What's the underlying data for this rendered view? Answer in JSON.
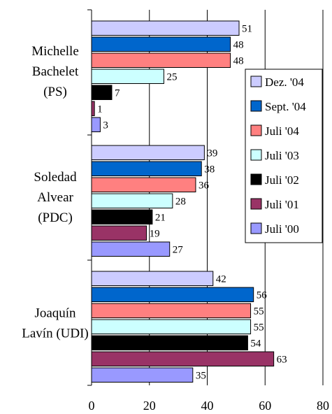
{
  "chart_data": {
    "type": "bar",
    "orientation": "horizontal",
    "categories": [
      [
        "Michelle",
        "Bachelet",
        "(PS)"
      ],
      [
        "Soledad",
        "Alvear",
        "(PDC)"
      ],
      [
        "Joaquín",
        "Lavín (UDI)"
      ]
    ],
    "series": [
      {
        "name": "Dez. '04",
        "color": "#ccccff",
        "values": [
          51,
          39,
          42
        ]
      },
      {
        "name": "Sept. '04",
        "color": "#0066cc",
        "values": [
          48,
          38,
          56
        ]
      },
      {
        "name": "Juli '04",
        "color": "#ff8080",
        "values": [
          48,
          36,
          55
        ]
      },
      {
        "name": "Juli '03",
        "color": "#ccffff",
        "values": [
          25,
          28,
          55
        ]
      },
      {
        "name": "Juli '02",
        "color": "#000000",
        "values": [
          7,
          21,
          54
        ]
      },
      {
        "name": "Juli '01",
        "color": "#993366",
        "values": [
          1,
          19,
          63
        ]
      },
      {
        "name": "Juli '00",
        "color": "#9999ff",
        "values": [
          3,
          27,
          35
        ]
      }
    ],
    "xlim": [
      0,
      80
    ],
    "xticks": [
      0,
      20,
      40,
      60,
      80
    ],
    "grid": "vertical",
    "legend_position": "right"
  }
}
